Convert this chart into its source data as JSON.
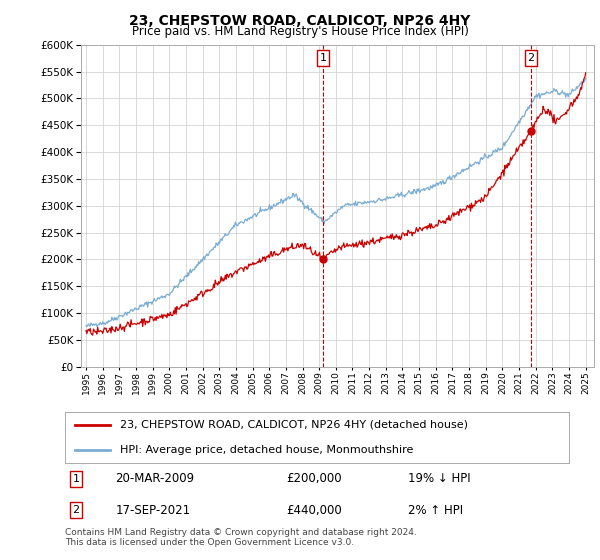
{
  "title": "23, CHEPSTOW ROAD, CALDICOT, NP26 4HY",
  "subtitle": "Price paid vs. HM Land Registry's House Price Index (HPI)",
  "legend_entry1": "23, CHEPSTOW ROAD, CALDICOT, NP26 4HY (detached house)",
  "legend_entry2": "HPI: Average price, detached house, Monmouthshire",
  "transaction1_date": "20-MAR-2009",
  "transaction1_price": "£200,000",
  "transaction1_hpi": "19% ↓ HPI",
  "transaction2_date": "17-SEP-2021",
  "transaction2_price": "£440,000",
  "transaction2_hpi": "2% ↑ HPI",
  "footnote": "Contains HM Land Registry data © Crown copyright and database right 2024.\nThis data is licensed under the Open Government Licence v3.0.",
  "red_color": "#cc0000",
  "blue_color": "#7aadd4",
  "ylim_min": 0,
  "ylim_max": 600000,
  "ytick_step": 50000,
  "year_start": 1995,
  "year_end": 2025,
  "marker1_year": 2009.22,
  "marker1_red_value": 200000,
  "marker2_year": 2021.72,
  "marker2_red_value": 440000,
  "background_color": "#ffffff",
  "grid_color": "#cccccc"
}
